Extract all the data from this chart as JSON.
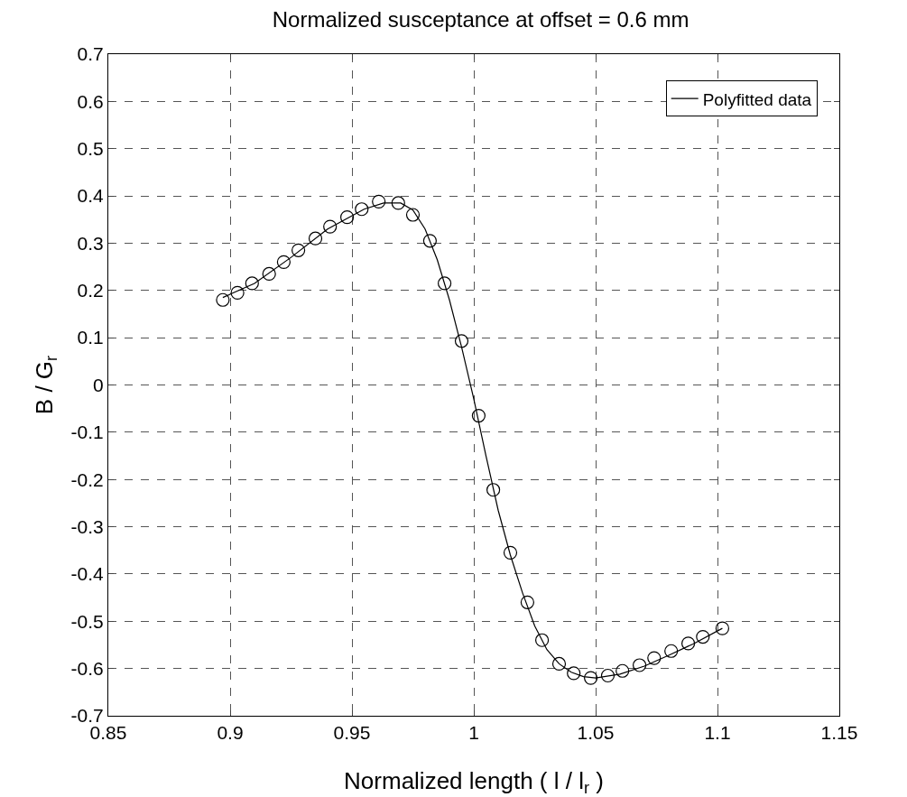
{
  "chart_data": {
    "type": "line",
    "title": "Normalized susceptance at offset = 0.6 mm",
    "xlabel": "Normalized length ( l / l$_{r}$ )",
    "ylabel": "B / G$_{r}$",
    "xlim": [
      0.85,
      1.15
    ],
    "xticks": [
      0.85,
      0.9,
      0.95,
      1,
      1.05,
      1.1,
      1.15
    ],
    "ylim": [
      -0.7,
      0.7
    ],
    "yticks": [
      -0.7,
      -0.6,
      -0.5,
      -0.4,
      -0.3,
      -0.2,
      -0.1,
      0,
      0.1,
      0.2,
      0.3,
      0.4,
      0.5,
      0.6,
      0.7
    ],
    "grid": true,
    "legend": "top right",
    "line_style": "solid",
    "series": [
      {
        "name": "Polyfitted data",
        "marker": "none",
        "color": "#000000",
        "x": [
          0.897,
          0.91,
          0.925,
          0.94,
          0.955,
          0.963,
          0.97,
          0.975,
          0.98,
          0.985,
          0.99,
          0.995,
          1.0,
          1.005,
          1.01,
          1.015,
          1.02,
          1.025,
          1.03,
          1.035,
          1.04,
          1.045,
          1.05,
          1.06,
          1.07,
          1.08,
          1.09,
          1.102
        ],
        "values": [
          0.185,
          0.215,
          0.27,
          0.33,
          0.372,
          0.385,
          0.385,
          0.37,
          0.33,
          0.265,
          0.18,
          0.08,
          -0.03,
          -0.15,
          -0.265,
          -0.36,
          -0.44,
          -0.51,
          -0.56,
          -0.59,
          -0.608,
          -0.617,
          -0.62,
          -0.612,
          -0.595,
          -0.572,
          -0.548,
          -0.515
        ]
      },
      {
        "type": "scatter",
        "marker": "circle",
        "color": "#000000",
        "x": [
          0.897,
          0.903,
          0.909,
          0.916,
          0.922,
          0.928,
          0.935,
          0.941,
          0.948,
          0.954,
          0.961,
          0.969,
          0.975,
          0.982,
          0.988,
          0.995,
          1.002,
          1.008,
          1.015,
          1.022,
          1.028,
          1.035,
          1.041,
          1.048,
          1.055,
          1.061,
          1.068,
          1.074,
          1.081,
          1.088,
          1.094,
          1.102
        ],
        "values": [
          0.18,
          0.195,
          0.215,
          0.235,
          0.26,
          0.285,
          0.31,
          0.335,
          0.355,
          0.372,
          0.388,
          0.385,
          0.36,
          0.305,
          0.215,
          0.093,
          -0.065,
          -0.222,
          -0.355,
          -0.46,
          -0.54,
          -0.59,
          -0.61,
          -0.62,
          -0.615,
          -0.605,
          -0.593,
          -0.578,
          -0.563,
          -0.547,
          -0.533,
          -0.515
        ]
      }
    ]
  }
}
